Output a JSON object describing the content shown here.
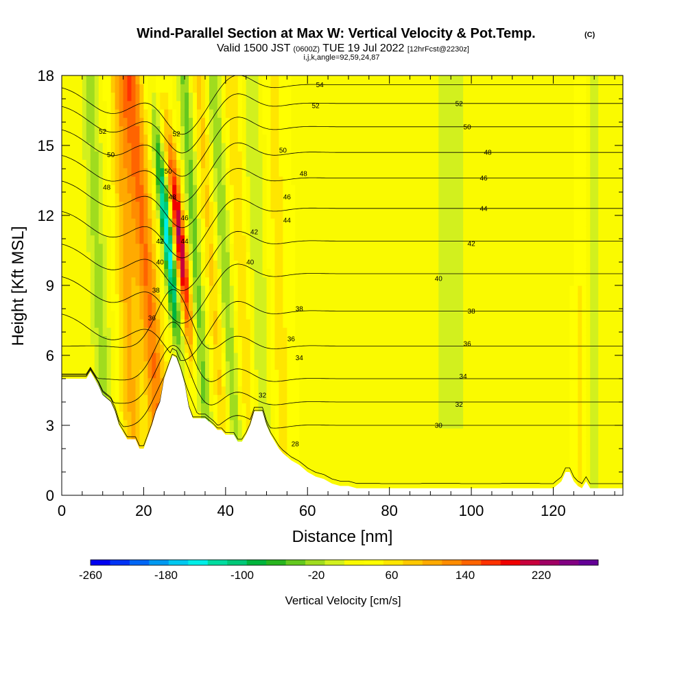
{
  "chart_data": {
    "type": "heatmap",
    "title": "Wind-Parallel Section at Max W: Vertical Velocity & Pot.Temp.",
    "copyright_mark": "(C)",
    "subtitle_valid": "Valid 1500 JST",
    "subtitle_z": "(0600Z)",
    "subtitle_date": "TUE 19 Jul 2022",
    "subtitle_fcst": "[12hrFcst@2230z]",
    "subtitle_ijk": "i,j,k,angle=92,59,24,87",
    "xlabel": "Distance [nm]",
    "ylabel": "Height [Kft MSL]",
    "xlim": [
      0,
      137
    ],
    "ylim": [
      0,
      18
    ],
    "x_ticks": [
      "0",
      "20",
      "40",
      "60",
      "80",
      "100",
      "120"
    ],
    "y_ticks": [
      "0",
      "3",
      "6",
      "9",
      "12",
      "15",
      "18"
    ],
    "colorbar": {
      "label": "Vertical Velocity [cm/s]",
      "min": -280,
      "max": 280,
      "tick_labels": [
        "-260",
        "-180",
        "-100",
        "-20",
        "60",
        "140",
        "220"
      ],
      "tick_values": [
        -260,
        -180,
        -100,
        -20,
        60,
        140,
        220
      ],
      "colors": [
        "#0000f0",
        "#0033f5",
        "#0066f5",
        "#0099f0",
        "#00c8f0",
        "#00eee8",
        "#00dca0",
        "#00c878",
        "#00b43c",
        "#28b41e",
        "#64c81e",
        "#a0dc1e",
        "#d2f01e",
        "#fafa00",
        "#ffff00",
        "#ffe600",
        "#ffc800",
        "#ffaa00",
        "#ff8c00",
        "#ff6400",
        "#ff3200",
        "#f00000",
        "#c8003c",
        "#a00064",
        "#820082",
        "#640096"
      ]
    },
    "terrain": [
      [
        0,
        5
      ],
      [
        6,
        5
      ],
      [
        7,
        5.3
      ],
      [
        8,
        5
      ],
      [
        9,
        4.7
      ],
      [
        10,
        4.3
      ],
      [
        12,
        4
      ],
      [
        13,
        3.6
      ],
      [
        14,
        3
      ],
      [
        16,
        2.4
      ],
      [
        18,
        2.4
      ],
      [
        19,
        2
      ],
      [
        20,
        2
      ],
      [
        21,
        2.5
      ],
      [
        22,
        3
      ],
      [
        23,
        3.6
      ],
      [
        24,
        4
      ],
      [
        25,
        5
      ],
      [
        26,
        5.5
      ],
      [
        27,
        6
      ],
      [
        28,
        5.9
      ],
      [
        29,
        5.4
      ],
      [
        30,
        4.8
      ],
      [
        31,
        3.8
      ],
      [
        32,
        3.3
      ],
      [
        35,
        3.3
      ],
      [
        37,
        3
      ],
      [
        38,
        2.8
      ],
      [
        39,
        2.8
      ],
      [
        40,
        2.6
      ],
      [
        42,
        2.6
      ],
      [
        43,
        2.3
      ],
      [
        44,
        2.3
      ],
      [
        45,
        2.6
      ],
      [
        46,
        3
      ],
      [
        47,
        3.6
      ],
      [
        49,
        3.6
      ],
      [
        50,
        3
      ],
      [
        51,
        2.6
      ],
      [
        52,
        2.3
      ],
      [
        53,
        2
      ],
      [
        54,
        1.8
      ],
      [
        56,
        1.5
      ],
      [
        58,
        1.3
      ],
      [
        60,
        1
      ],
      [
        62,
        0.8
      ],
      [
        64,
        0.7
      ],
      [
        66,
        0.5
      ],
      [
        68,
        0.4
      ],
      [
        70,
        0.4
      ],
      [
        72,
        0.3
      ],
      [
        120,
        0.3
      ],
      [
        122,
        0.6
      ],
      [
        123,
        1
      ],
      [
        124,
        1
      ],
      [
        125,
        0.6
      ],
      [
        126,
        0.4
      ],
      [
        127,
        0.3
      ],
      [
        128,
        0.6
      ],
      [
        129,
        0.3
      ],
      [
        137,
        0.3
      ]
    ],
    "theta_contours": [
      {
        "label": "28",
        "y_right": 0.5,
        "labels": [
          [
            57,
            2.2
          ]
        ]
      },
      {
        "label": "30",
        "y_right": 3.0,
        "labels": [
          [
            92,
            3.0
          ]
        ]
      },
      {
        "label": "32",
        "y_right": 4.0,
        "labels": [
          [
            49,
            4.3
          ],
          [
            97,
            3.9
          ]
        ]
      },
      {
        "label": "34",
        "y_right": 5.0,
        "labels": [
          [
            58,
            5.9
          ],
          [
            98,
            5.1
          ]
        ]
      },
      {
        "label": "36",
        "y_right": 6.4,
        "labels": [
          [
            22,
            7.6
          ],
          [
            56,
            6.7
          ],
          [
            99,
            6.5
          ]
        ]
      },
      {
        "label": "38",
        "y_right": 7.9,
        "labels": [
          [
            23,
            8.8
          ],
          [
            58,
            8.0
          ],
          [
            100,
            7.9
          ]
        ]
      },
      {
        "label": "40",
        "y_right": 9.5,
        "labels": [
          [
            24,
            10.0
          ],
          [
            46,
            10.0
          ],
          [
            92,
            9.3
          ]
        ]
      },
      {
        "label": "42",
        "y_right": 10.9,
        "labels": [
          [
            24,
            10.9
          ],
          [
            47,
            11.3
          ],
          [
            100,
            10.8
          ]
        ]
      },
      {
        "label": "44",
        "y_right": 12.3,
        "labels": [
          [
            30,
            10.9
          ],
          [
            55,
            11.8
          ],
          [
            103,
            12.3
          ]
        ]
      },
      {
        "label": "46",
        "y_right": 13.6,
        "labels": [
          [
            30,
            11.9
          ],
          [
            55,
            12.8
          ],
          [
            103,
            13.6
          ]
        ]
      },
      {
        "label": "48",
        "y_right": 14.7,
        "labels": [
          [
            11,
            13.2
          ],
          [
            27,
            12.8
          ],
          [
            59,
            13.8
          ],
          [
            104,
            14.7
          ]
        ]
      },
      {
        "label": "50",
        "y_right": 15.8,
        "labels": [
          [
            12,
            14.6
          ],
          [
            26,
            13.9
          ],
          [
            54,
            14.8
          ],
          [
            99,
            15.8
          ]
        ]
      },
      {
        "label": "52",
        "y_right": 16.8,
        "labels": [
          [
            10,
            15.6
          ],
          [
            28,
            15.5
          ],
          [
            62,
            16.7
          ],
          [
            97,
            16.8
          ]
        ]
      },
      {
        "label": "54",
        "y_right": 17.6,
        "labels": [
          [
            63,
            17.6
          ]
        ]
      }
    ]
  }
}
